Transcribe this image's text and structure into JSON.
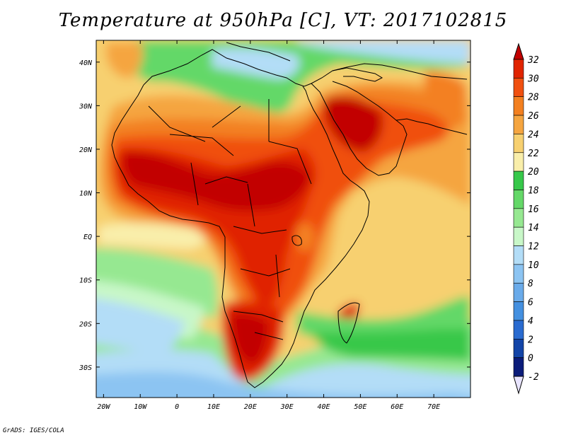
{
  "title": "Temperature at 950hPa [C], VT: 2017102815",
  "credit": "GrADS: IGES/COLA",
  "map": {
    "lon_range": [
      -22,
      80
    ],
    "lat_range": [
      -37,
      45
    ],
    "x_ticks": [
      "20W",
      "10W",
      "0",
      "10E",
      "20E",
      "30E",
      "40E",
      "50E",
      "60E",
      "70E"
    ],
    "y_ticks": [
      "40N",
      "30N",
      "20N",
      "10N",
      "EQ",
      "10S",
      "20S",
      "30S"
    ]
  },
  "colorbar": {
    "labels": [
      "32",
      "30",
      "28",
      "26",
      "24",
      "22",
      "20",
      "18",
      "16",
      "14",
      "12",
      "10",
      "8",
      "6",
      "4",
      "2",
      "0",
      "-2"
    ],
    "colors": [
      "#c20000",
      "#e02400",
      "#f05010",
      "#f38020",
      "#f5a540",
      "#f7d070",
      "#f9eeaa",
      "#37c84a",
      "#64d868",
      "#96e891",
      "#c8f7c8",
      "#b3ddf7",
      "#8cc4f2",
      "#6aabea",
      "#4490e0",
      "#2a6bd0",
      "#1345a8",
      "#0b1c7a"
    ],
    "top_arrow_color": "#c20000",
    "bottom_arrow_color": "#e8e4ff"
  }
}
